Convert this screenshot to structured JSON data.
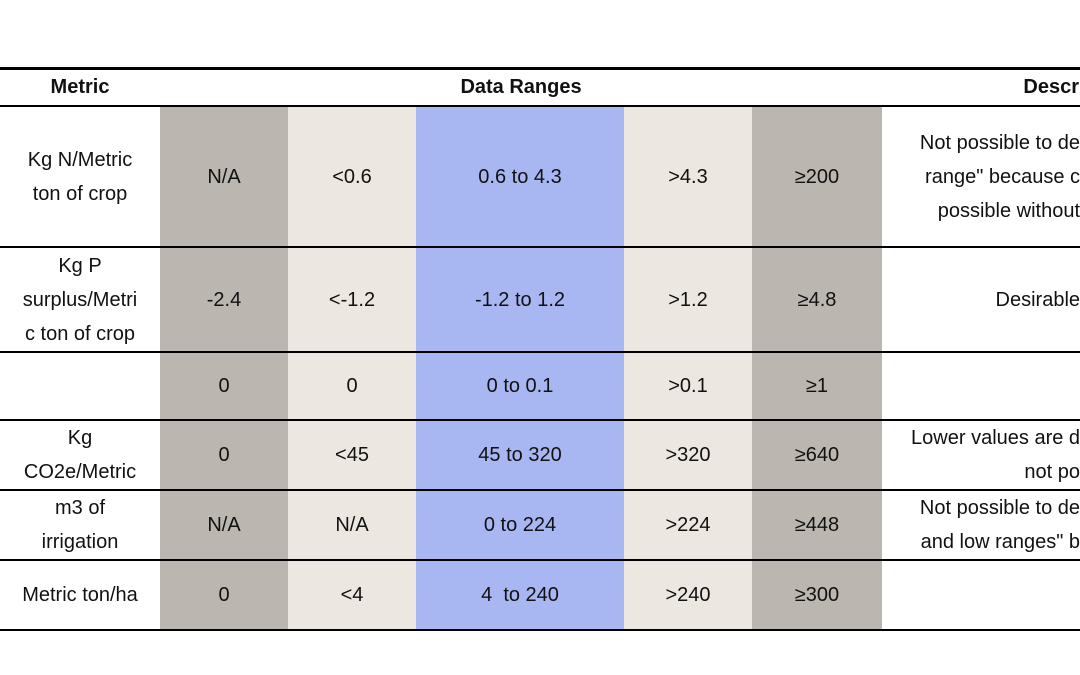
{
  "header": {
    "metric": "Metric",
    "data_ranges": "Data Ranges",
    "description": "Descr"
  },
  "rows": [
    {
      "metric": [
        "Kg N/Metric",
        "ton of crop"
      ],
      "ranges": [
        "N/A",
        "<0.6",
        "0.6 to 4.3",
        ">4.3",
        "≥200"
      ],
      "description": [
        "Not possible to de",
        "range\" because c",
        "possible without"
      ]
    },
    {
      "metric": [
        "Kg P",
        "surplus/Metri",
        "c ton of crop"
      ],
      "ranges": [
        "-2.4",
        "<-1.2",
        "-1.2 to 1.2",
        ">1.2",
        "≥4.8"
      ],
      "description": [
        "Desirable"
      ]
    },
    {
      "metric": [],
      "ranges": [
        "0",
        "0",
        "0 to 0.1",
        ">0.1",
        "≥1"
      ],
      "description": []
    },
    {
      "metric": [
        "Kg",
        "CO2e/Metric"
      ],
      "ranges": [
        "0",
        "<45",
        "45 to 320",
        ">320",
        "≥640"
      ],
      "description": [
        "Lower values are d",
        "not po"
      ]
    },
    {
      "metric": [
        "m3 of",
        "irrigation"
      ],
      "ranges": [
        "N/A",
        "N/A",
        "0 to 224",
        ">224",
        "≥448"
      ],
      "description": [
        "Not possible to de",
        "and low ranges\" b"
      ]
    },
    {
      "metric": [
        "Metric ton/ha"
      ],
      "ranges": [
        "0",
        "<4",
        "4  to 240",
        ">240",
        "≥300"
      ],
      "description": []
    }
  ]
}
